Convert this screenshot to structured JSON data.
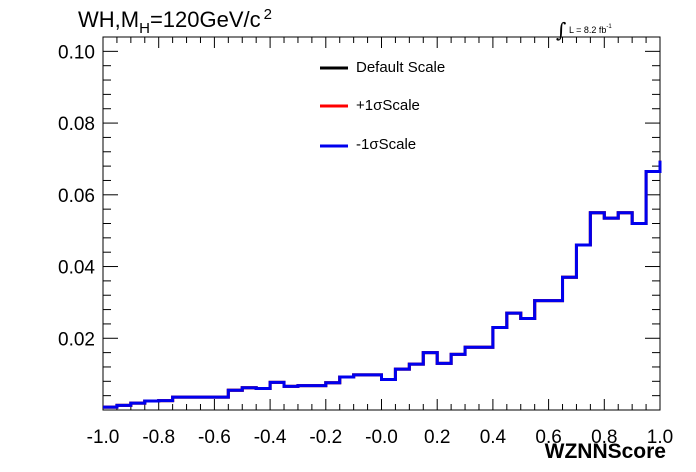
{
  "title": {
    "prefix": "WH,M",
    "subscript": "H",
    "suffix": "=120GeV/c",
    "superscript": "2"
  },
  "lumi": {
    "integral": "∫",
    "text": "L = 8.2 fb",
    "superscript": "-1"
  },
  "chart_data": {
    "type": "line",
    "style": "step-histogram",
    "xlabel": "WZNNScore",
    "ylabel": "",
    "xlim": [
      -1.0,
      1.0
    ],
    "ylim": [
      0.0,
      0.104
    ],
    "x_ticks": [
      "-1.0",
      "-0.8",
      "-0.6",
      "-0.4",
      "-0.2",
      "-0.0",
      "0.2",
      "0.4",
      "0.6",
      "0.8",
      "1.0"
    ],
    "y_ticks": [
      "0.02",
      "0.04",
      "0.06",
      "0.08",
      "0.10"
    ],
    "bin_edges": [
      -1.0,
      -0.95,
      -0.9,
      -0.85,
      -0.8,
      -0.75,
      -0.7,
      -0.65,
      -0.6,
      -0.55,
      -0.5,
      -0.45,
      -0.4,
      -0.35,
      -0.3,
      -0.25,
      -0.2,
      -0.15,
      -0.1,
      -0.05,
      0.0,
      0.05,
      0.1,
      0.15,
      0.2,
      0.25,
      0.3,
      0.35,
      0.4,
      0.45,
      0.5,
      0.55,
      0.6,
      0.65,
      0.7,
      0.75,
      0.8,
      0.85,
      0.9,
      0.95,
      1.0
    ],
    "series": [
      {
        "name": "Default Scale",
        "color": "#000000",
        "values": [
          0.0008,
          0.0013,
          0.0019,
          0.0025,
          0.0026,
          0.0036,
          0.0036,
          0.0036,
          0.0036,
          0.0055,
          0.0062,
          0.006,
          0.0077,
          0.0066,
          0.0068,
          0.0068,
          0.0076,
          0.0092,
          0.0098,
          0.0098,
          0.0085,
          0.0114,
          0.0128,
          0.016,
          0.013,
          0.0155,
          0.0175,
          0.0175,
          0.023,
          0.027,
          0.0255,
          0.0305,
          0.0305,
          0.037,
          0.046,
          0.055,
          0.0535,
          0.055,
          0.052,
          0.0665,
          0.0695
        ]
      },
      {
        "name": "+1σScale",
        "color": "#ff0000",
        "values": [
          0.0008,
          0.0013,
          0.0019,
          0.0025,
          0.0026,
          0.0036,
          0.0036,
          0.0036,
          0.0036,
          0.0055,
          0.0062,
          0.006,
          0.0077,
          0.0066,
          0.0068,
          0.0068,
          0.0076,
          0.0092,
          0.0098,
          0.0098,
          0.0085,
          0.0114,
          0.0128,
          0.016,
          0.013,
          0.0155,
          0.0175,
          0.0175,
          0.023,
          0.027,
          0.0255,
          0.0305,
          0.0305,
          0.037,
          0.046,
          0.055,
          0.0535,
          0.055,
          0.052,
          0.0665,
          0.0695
        ]
      },
      {
        "name": "-1σScale",
        "color": "#0000ee",
        "values": [
          0.0008,
          0.0013,
          0.0019,
          0.0025,
          0.0026,
          0.0036,
          0.0036,
          0.0036,
          0.0036,
          0.0055,
          0.0062,
          0.006,
          0.0077,
          0.0066,
          0.0068,
          0.0068,
          0.0076,
          0.0092,
          0.0098,
          0.0098,
          0.0085,
          0.0114,
          0.0128,
          0.016,
          0.013,
          0.0155,
          0.0175,
          0.0175,
          0.023,
          0.027,
          0.0255,
          0.0305,
          0.0305,
          0.037,
          0.046,
          0.055,
          0.0535,
          0.055,
          0.052,
          0.0665,
          0.0695
        ]
      }
    ],
    "legend_position": "top-center",
    "grid": false
  }
}
